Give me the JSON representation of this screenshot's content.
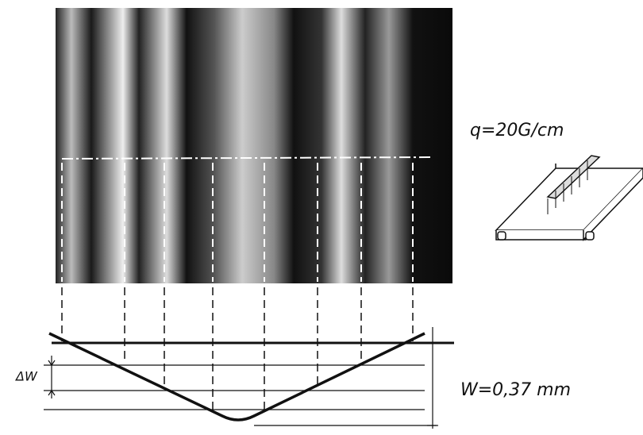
{
  "labels": {
    "load": "q=20G/cm",
    "delta_w": "ΔW",
    "deflection": "W=0,37 mm"
  }
}
